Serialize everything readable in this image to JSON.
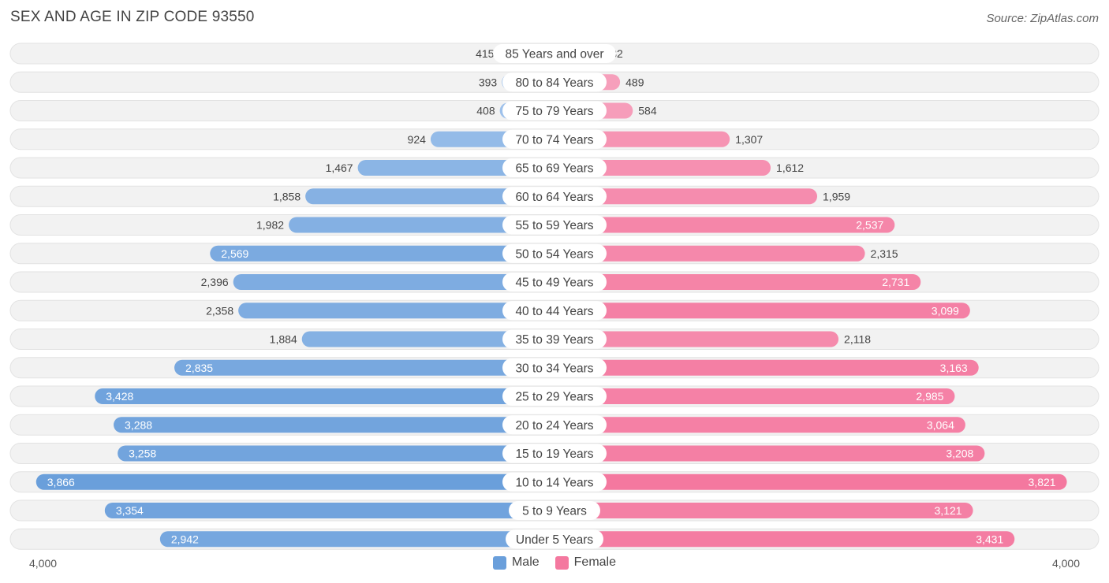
{
  "title": "SEX AND AGE IN ZIP CODE 93550",
  "source": "Source: ZipAtlas.com",
  "chart_data": {
    "type": "bar",
    "orientation": "horizontal-diverging",
    "title": "SEX AND AGE IN ZIP CODE 93550",
    "categories": [
      "85 Years and over",
      "80 to 84 Years",
      "75 to 79 Years",
      "70 to 74 Years",
      "65 to 69 Years",
      "60 to 64 Years",
      "55 to 59 Years",
      "50 to 54 Years",
      "45 to 49 Years",
      "40 to 44 Years",
      "35 to 39 Years",
      "30 to 34 Years",
      "25 to 29 Years",
      "20 to 24 Years",
      "15 to 19 Years",
      "10 to 14 Years",
      "5 to 9 Years",
      "Under 5 Years"
    ],
    "series": [
      {
        "name": "Male",
        "values": [
          415,
          393,
          408,
          924,
          1467,
          1858,
          1982,
          2569,
          2396,
          2358,
          1884,
          2835,
          3428,
          3288,
          3258,
          3866,
          3354,
          2942
        ]
      },
      {
        "name": "Female",
        "values": [
          332,
          489,
          584,
          1307,
          1612,
          1959,
          2537,
          2315,
          2731,
          3099,
          2118,
          3163,
          2985,
          3064,
          3208,
          3821,
          3121,
          3431
        ]
      }
    ],
    "value_labels_male": [
      "415",
      "393",
      "408",
      "924",
      "1,467",
      "1,858",
      "1,982",
      "2,569",
      "2,396",
      "2,358",
      "1,884",
      "2,835",
      "3,428",
      "3,288",
      "3,258",
      "3,866",
      "3,354",
      "2,942"
    ],
    "value_labels_female": [
      "332",
      "489",
      "584",
      "1,307",
      "1,612",
      "1,959",
      "2,537",
      "2,315",
      "2,731",
      "3,099",
      "2,118",
      "3,163",
      "2,985",
      "3,064",
      "3,208",
      "3,821",
      "3,121",
      "3,431"
    ],
    "xlim": [
      0,
      4000
    ],
    "axis_left_label": "4,000",
    "axis_right_label": "4,000",
    "legend": [
      "Male",
      "Female"
    ],
    "legend_position": "bottom-center",
    "colors": {
      "male_dark": "#6a9fdb",
      "male_light": "#a8c8ee",
      "female_dark": "#f4789f",
      "female_light": "#f7a8c2",
      "row_bg": "#f2f2f2",
      "row_border": "#e2e2e2"
    }
  }
}
